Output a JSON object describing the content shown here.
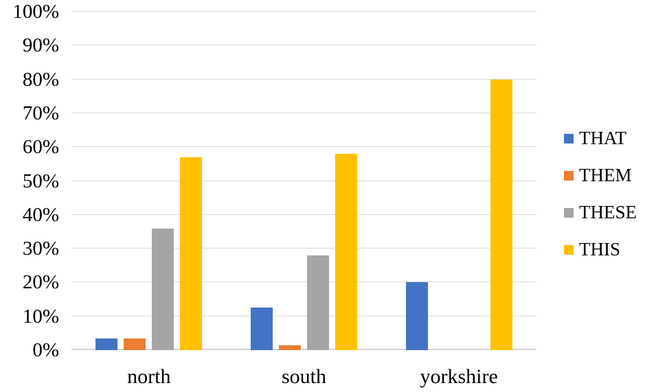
{
  "chart_data": {
    "type": "bar",
    "title": "",
    "xlabel": "",
    "ylabel": "",
    "categories": [
      "north",
      "south",
      "yorkshire"
    ],
    "series": [
      {
        "name": "THAT",
        "color": "#4472C4",
        "values": [
          3.5,
          12.5,
          20
        ]
      },
      {
        "name": "THEM",
        "color": "#ED7D31",
        "values": [
          3.5,
          1.5,
          0
        ]
      },
      {
        "name": "THESE",
        "color": "#A5A5A5",
        "values": [
          36,
          28,
          0
        ]
      },
      {
        "name": "THIS",
        "color": "#FFC000",
        "values": [
          57,
          58,
          80
        ]
      }
    ],
    "ylim": [
      0,
      100
    ],
    "ytick_step": 10,
    "ytick_labels": [
      "0%",
      "10%",
      "20%",
      "30%",
      "40%",
      "50%",
      "60%",
      "70%",
      "80%",
      "90%",
      "100%"
    ],
    "grid": true,
    "legend_position": "right"
  },
  "colors": {
    "gridline": "#D9D9D9",
    "axis_line": "#D2D2D2",
    "background": "#FFFFFF",
    "text": "#000000"
  }
}
